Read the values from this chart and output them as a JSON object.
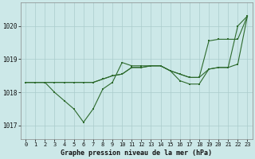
{
  "xlabel": "Graphe pression niveau de la mer (hPa)",
  "hours": [
    0,
    1,
    2,
    3,
    4,
    5,
    6,
    7,
    8,
    9,
    10,
    11,
    12,
    13,
    14,
    15,
    16,
    17,
    18,
    19,
    20,
    21,
    22,
    23
  ],
  "series1": [
    1018.3,
    1018.3,
    1018.3,
    1018.3,
    1018.3,
    1018.3,
    1018.3,
    1018.3,
    1018.4,
    1018.5,
    1018.55,
    1018.75,
    1018.75,
    1018.8,
    1018.8,
    1018.65,
    1018.55,
    1018.45,
    1018.45,
    1018.7,
    1018.75,
    1018.75,
    1018.85,
    1020.3
  ],
  "series2": [
    1018.3,
    1018.3,
    1018.3,
    1018.0,
    1017.75,
    1017.5,
    1017.1,
    1017.5,
    1018.1,
    1018.3,
    1018.9,
    1018.8,
    1018.8,
    1018.8,
    1018.8,
    1018.65,
    1018.35,
    1018.25,
    1018.25,
    1018.7,
    1018.75,
    1018.75,
    1020.0,
    1020.3
  ],
  "series3": [
    1018.3,
    1018.3,
    1018.3,
    1018.3,
    1018.3,
    1018.3,
    1018.3,
    1018.3,
    1018.4,
    1018.5,
    1018.55,
    1018.75,
    1018.75,
    1018.8,
    1018.8,
    1018.65,
    1018.55,
    1018.45,
    1018.45,
    1019.55,
    1019.6,
    1019.6,
    1019.6,
    1020.3
  ],
  "line_color": "#2d6a2d",
  "bg_color": "#cce8e8",
  "grid_color": "#aacccc",
  "ylim_min": 1016.6,
  "ylim_max": 1020.7,
  "yticks": [
    1017,
    1018,
    1019,
    1020
  ],
  "xticks": [
    0,
    1,
    2,
    3,
    4,
    5,
    6,
    7,
    8,
    9,
    10,
    11,
    12,
    13,
    14,
    15,
    16,
    17,
    18,
    19,
    20,
    21,
    22,
    23
  ],
  "xlabel_fontsize": 6.0,
  "tick_fontsize": 5.0
}
